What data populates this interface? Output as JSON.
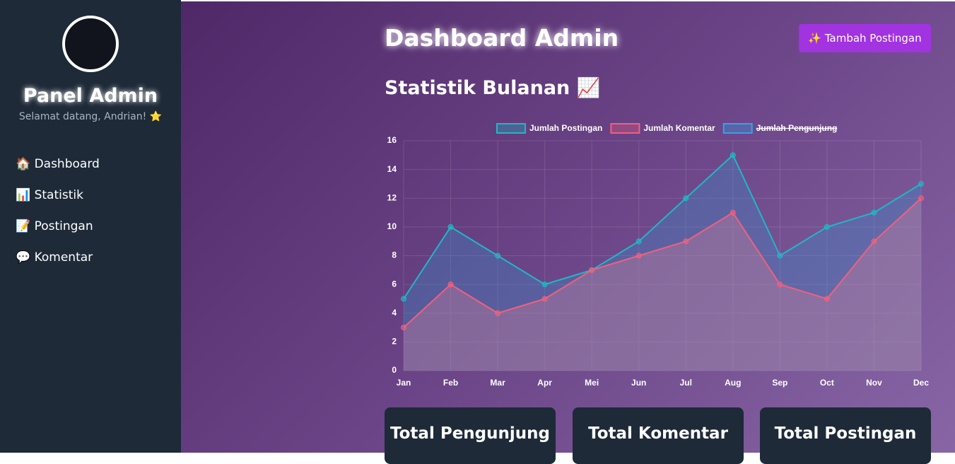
{
  "sidebar": {
    "title": "Panel Admin",
    "welcome": "Selamat datang, Andrian! ⭐",
    "menu": [
      "🏠 Dashboard",
      "📊 Statistik",
      "📝 Postingan",
      "💬 Komentar"
    ]
  },
  "header": {
    "title": "Dashboard Admin",
    "button": "✨ Tambah Postingan",
    "section_title": "Statistik Bulanan 📈"
  },
  "chart_data": {
    "type": "line",
    "categories": [
      "Jan",
      "Feb",
      "Mar",
      "Apr",
      "Mei",
      "Jun",
      "Jul",
      "Aug",
      "Sep",
      "Oct",
      "Nov",
      "Dec"
    ],
    "series": [
      {
        "name": "Jumlah Postingan",
        "color": "#1fb8c4",
        "values": [
          5,
          10,
          8,
          6,
          7,
          9,
          12,
          15,
          8,
          10,
          11,
          13
        ]
      },
      {
        "name": "Jumlah Komentar",
        "color": "#f0607e",
        "values": [
          3,
          6,
          4,
          5,
          7,
          8,
          9,
          11,
          6,
          5,
          9,
          12
        ]
      },
      {
        "name": "Jumlah Pengunjung",
        "color": "#36a2eb",
        "hidden": true
      }
    ],
    "ylim": [
      0,
      16
    ],
    "yticks": [
      0,
      2,
      4,
      6,
      8,
      10,
      12,
      14,
      16
    ],
    "grid": true,
    "legend": "top"
  },
  "cards": [
    "Total Pengunjung",
    "Total Komentar",
    "Total Postingan"
  ]
}
